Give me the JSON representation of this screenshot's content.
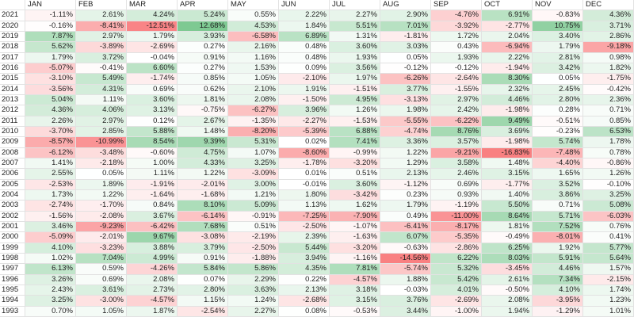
{
  "table": {
    "columns": [
      "JAN",
      "FEB",
      "MAR",
      "APR",
      "MAY",
      "JUN",
      "JUL",
      "AUG",
      "SEP",
      "OCT",
      "NOV",
      "DEC"
    ],
    "rows": [
      {
        "year": "2021",
        "cells": [
          "-1.11%",
          "2.61%",
          "4.24%",
          "5.24%",
          "0.55%",
          "2.22%",
          "2.27%",
          "2.90%",
          "-4.76%",
          "6.91%",
          "-0.83%",
          "4.36%"
        ]
      },
      {
        "year": "2020",
        "cells": [
          "-0.16%",
          "-8.41%",
          "-12.51%",
          "12.68%",
          "4.53%",
          "1.84%",
          "5.51%",
          "7.01%",
          "-3.92%",
          "-2.77%",
          "10.75%",
          "3.71%"
        ]
      },
      {
        "year": "2019",
        "cells": [
          "7.87%",
          "2.97%",
          "1.79%",
          "3.93%",
          "-6.58%",
          "6.89%",
          "1.31%",
          "-1.81%",
          "1.72%",
          "2.04%",
          "3.40%",
          "2.86%"
        ]
      },
      {
        "year": "2018",
        "cells": [
          "5.62%",
          "-3.89%",
          "-2.69%",
          "0.27%",
          "2.16%",
          "0.48%",
          "3.60%",
          "3.03%",
          "0.43%",
          "-6.94%",
          "1.79%",
          "-9.18%"
        ]
      },
      {
        "year": "2017",
        "cells": [
          "1.79%",
          "3.72%",
          "-0.04%",
          "0.91%",
          "1.16%",
          "0.48%",
          "1.93%",
          "0.05%",
          "1.93%",
          "2.22%",
          "2.81%",
          "0.98%"
        ]
      },
      {
        "year": "2016",
        "cells": [
          "-5.07%",
          "-0.41%",
          "6.60%",
          "0.27%",
          "1.53%",
          "0.09%",
          "3.56%",
          "-0.12%",
          "-0.12%",
          "-1.94%",
          "3.42%",
          "1.82%"
        ]
      },
      {
        "year": "2015",
        "cells": [
          "-3.10%",
          "5.49%",
          "-1.74%",
          "0.85%",
          "1.05%",
          "-2.10%",
          "1.97%",
          "-6.26%",
          "-2.64%",
          "8.30%",
          "0.05%",
          "-1.75%"
        ]
      },
      {
        "year": "2014",
        "cells": [
          "-3.56%",
          "4.31%",
          "0.69%",
          "0.62%",
          "2.10%",
          "1.91%",
          "-1.51%",
          "3.77%",
          "-1.55%",
          "2.32%",
          "2.45%",
          "-0.42%"
        ]
      },
      {
        "year": "2013",
        "cells": [
          "5.04%",
          "1.11%",
          "3.60%",
          "1.81%",
          "2.08%",
          "-1.50%",
          "4.95%",
          "-3.13%",
          "2.97%",
          "4.46%",
          "2.80%",
          "2.36%"
        ]
      },
      {
        "year": "2012",
        "cells": [
          "4.36%",
          "4.06%",
          "3.13%",
          "-0.75%",
          "-6.27%",
          "3.96%",
          "1.26%",
          "1.98%",
          "2.42%",
          "-1.98%",
          "0.28%",
          "0.71%"
        ]
      },
      {
        "year": "2011",
        "cells": [
          "2.26%",
          "2.97%",
          "0.12%",
          "2.67%",
          "-1.35%",
          "-2.27%",
          "-1.53%",
          "-5.55%",
          "-6.22%",
          "9.49%",
          "-0.51%",
          "0.85%"
        ]
      },
      {
        "year": "2010",
        "cells": [
          "-3.70%",
          "2.85%",
          "5.88%",
          "1.48%",
          "-8.20%",
          "-5.39%",
          "6.88%",
          "-4.74%",
          "8.76%",
          "3.69%",
          "-0.23%",
          "6.53%"
        ]
      },
      {
        "year": "2009",
        "cells": [
          "-8.57%",
          "-10.99%",
          "8.54%",
          "9.39%",
          "5.31%",
          "0.02%",
          "7.41%",
          "3.36%",
          "3.57%",
          "-1.98%",
          "5.74%",
          "1.78%"
        ]
      },
      {
        "year": "2008",
        "cells": [
          "-6.12%",
          "-3.48%",
          "-0.60%",
          "4.75%",
          "1.07%",
          "-8.60%",
          "-0.99%",
          "1.22%",
          "-9.21%",
          "-16.83%",
          "-7.48%",
          "0.78%"
        ]
      },
      {
        "year": "2007",
        "cells": [
          "1.41%",
          "-2.18%",
          "1.00%",
          "4.33%",
          "3.25%",
          "-1.78%",
          "-3.20%",
          "1.29%",
          "3.58%",
          "1.48%",
          "-4.40%",
          "-0.86%"
        ]
      },
      {
        "year": "2006",
        "cells": [
          "2.55%",
          "0.05%",
          "1.11%",
          "1.22%",
          "-3.09%",
          "0.01%",
          "0.51%",
          "2.13%",
          "2.46%",
          "3.15%",
          "1.65%",
          "1.26%"
        ]
      },
      {
        "year": "2005",
        "cells": [
          "-2.53%",
          "1.89%",
          "-1.91%",
          "-2.01%",
          "3.00%",
          "-0.01%",
          "3.60%",
          "-1.12%",
          "0.69%",
          "-1.77%",
          "3.52%",
          "-0.10%"
        ]
      },
      {
        "year": "2004",
        "cells": [
          "1.73%",
          "1.22%",
          "-1.64%",
          "-1.68%",
          "1.21%",
          "1.80%",
          "-3.42%",
          "0.23%",
          "0.93%",
          "1.40%",
          "3.86%",
          "3.25%"
        ]
      },
      {
        "year": "2003",
        "cells": [
          "-2.74%",
          "-1.70%",
          "0.84%",
          "8.10%",
          "5.09%",
          "1.13%",
          "1.62%",
          "1.79%",
          "-1.19%",
          "5.50%",
          "0.71%",
          "5.08%"
        ]
      },
      {
        "year": "2002",
        "cells": [
          "-1.56%",
          "-2.08%",
          "3.67%",
          "-6.14%",
          "-0.91%",
          "-7.25%",
          "-7.90%",
          "0.49%",
          "-11.00%",
          "8.64%",
          "5.71%",
          "-6.03%"
        ]
      },
      {
        "year": "2001",
        "cells": [
          "3.46%",
          "-9.23%",
          "-6.42%",
          "7.68%",
          "0.51%",
          "-2.50%",
          "-1.07%",
          "-6.41%",
          "-8.17%",
          "1.81%",
          "7.52%",
          "0.76%"
        ]
      },
      {
        "year": "2000",
        "cells": [
          "-5.09%",
          "-2.01%",
          "9.67%",
          "-3.08%",
          "-2.19%",
          "2.39%",
          "-1.63%",
          "6.07%",
          "-5.35%",
          "-0.49%",
          "-8.01%",
          "0.41%"
        ]
      },
      {
        "year": "1999",
        "cells": [
          "4.10%",
          "-3.23%",
          "3.88%",
          "3.79%",
          "-2.50%",
          "5.44%",
          "-3.20%",
          "-0.63%",
          "-2.86%",
          "6.25%",
          "1.92%",
          "5.77%"
        ]
      },
      {
        "year": "1998",
        "cells": [
          "1.02%",
          "7.04%",
          "4.99%",
          "0.91%",
          "-1.88%",
          "3.94%",
          "-1.16%",
          "-14.56%",
          "6.22%",
          "8.03%",
          "5.91%",
          "5.64%"
        ]
      },
      {
        "year": "1997",
        "cells": [
          "6.13%",
          "0.59%",
          "-4.26%",
          "5.84%",
          "5.86%",
          "4.35%",
          "7.81%",
          "-5.74%",
          "5.32%",
          "-3.45%",
          "4.46%",
          "1.57%"
        ]
      },
      {
        "year": "1996",
        "cells": [
          "3.26%",
          "0.69%",
          "2.08%",
          "0.07%",
          "2.29%",
          "0.22%",
          "-4.57%",
          "1.88%",
          "5.42%",
          "2.61%",
          "7.34%",
          "-2.15%"
        ]
      },
      {
        "year": "1995",
        "cells": [
          "2.43%",
          "3.61%",
          "2.73%",
          "2.80%",
          "3.63%",
          "2.13%",
          "3.18%",
          "-0.03%",
          "4.01%",
          "-0.50%",
          "4.10%",
          "1.74%"
        ]
      },
      {
        "year": "1994",
        "cells": [
          "3.25%",
          "-3.00%",
          "-4.57%",
          "1.15%",
          "1.24%",
          "-2.68%",
          "3.15%",
          "3.76%",
          "-2.69%",
          "2.08%",
          "-3.95%",
          "1.23%"
        ]
      },
      {
        "year": "1993",
        "cells": [
          "0.70%",
          "1.05%",
          "1.87%",
          "-2.54%",
          "2.27%",
          "0.08%",
          "-0.53%",
          "3.44%",
          "-1.00%",
          "1.94%",
          "-1.29%",
          "1.01%"
        ]
      }
    ]
  }
}
